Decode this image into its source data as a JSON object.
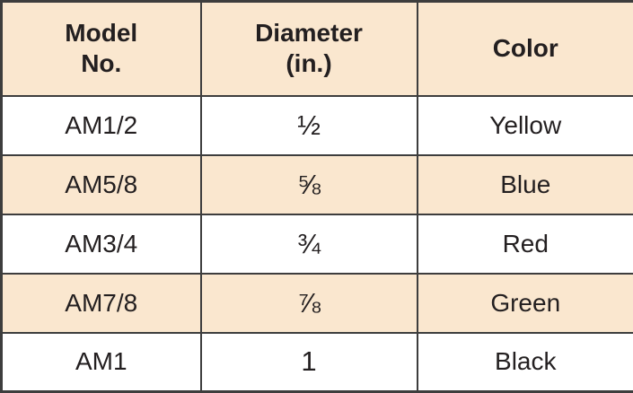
{
  "colors": {
    "shaded_bg": "#FAE7CF",
    "row_bg": "#FFFFFF",
    "border": "#3D3D3D",
    "text": "#231F20"
  },
  "table": {
    "headers": [
      "Model\nNo.",
      "Diameter\n(in.)",
      "Color"
    ],
    "rows": [
      {
        "model": "AM1/2",
        "diameter": "½",
        "color": "Yellow"
      },
      {
        "model": "AM5/8",
        "diameter": "⅝",
        "color": "Blue"
      },
      {
        "model": "AM3/4",
        "diameter": "¾",
        "color": "Red"
      },
      {
        "model": "AM7/8",
        "diameter": "⅞",
        "color": "Green"
      },
      {
        "model": "AM1",
        "diameter": "1",
        "color": "Black"
      }
    ]
  },
  "chart_data": {
    "type": "table",
    "title": "",
    "columns": [
      "Model No.",
      "Diameter (in.)",
      "Color"
    ],
    "rows": [
      [
        "AM1/2",
        "1/2",
        "Yellow"
      ],
      [
        "AM5/8",
        "5/8",
        "Blue"
      ],
      [
        "AM3/4",
        "3/4",
        "Red"
      ],
      [
        "AM7/8",
        "7/8",
        "Green"
      ],
      [
        "AM1",
        "1",
        "Black"
      ]
    ]
  }
}
